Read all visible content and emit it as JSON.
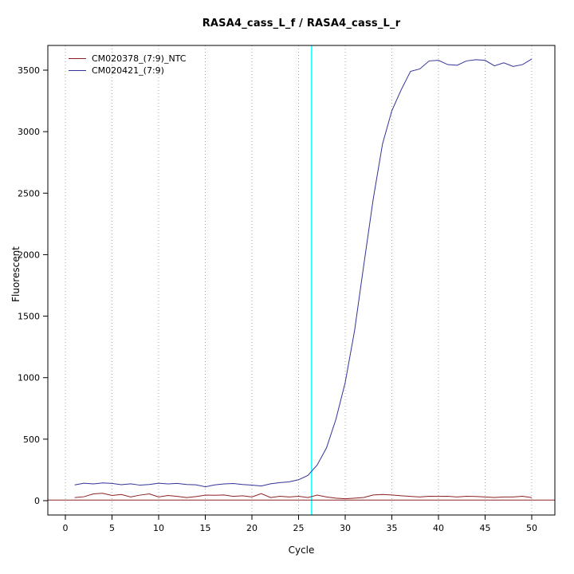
{
  "chart_data": {
    "type": "line",
    "title": "RASA4_cass_L_f / RASA4_cass_L_r",
    "xlabel": "Cycle",
    "ylabel": "Fluorescent",
    "xlim": [
      0,
      51
    ],
    "ylim": [
      0,
      3700
    ],
    "x_ticks": [
      0,
      5,
      10,
      15,
      20,
      25,
      30,
      35,
      40,
      45,
      50
    ],
    "y_ticks": [
      0,
      500,
      1000,
      1500,
      2000,
      2500,
      3000,
      3500
    ],
    "grid": "vertical-dotted",
    "legend_position": "top-left",
    "threshold_cycle": 26.4,
    "baseline_y": 5,
    "colors": {
      "grid": "#aaaaaa",
      "threshold": "#00ffff",
      "baseline": "#8b2222",
      "axis": "#000000"
    },
    "x": [
      1,
      2,
      3,
      4,
      5,
      6,
      7,
      8,
      9,
      10,
      11,
      12,
      13,
      14,
      15,
      16,
      17,
      18,
      19,
      20,
      21,
      22,
      23,
      24,
      25,
      26,
      27,
      28,
      29,
      30,
      31,
      32,
      33,
      34,
      35,
      36,
      37,
      38,
      39,
      40,
      41,
      42,
      43,
      44,
      45,
      46,
      47,
      48,
      49,
      50
    ],
    "series": [
      {
        "name": "CM020378_(7:9)_NTC",
        "color": "#8b2222",
        "values": [
          25,
          32,
          55,
          60,
          42,
          50,
          30,
          45,
          55,
          30,
          42,
          35,
          25,
          33,
          45,
          44,
          46,
          35,
          40,
          30,
          57,
          25,
          36,
          30,
          36,
          25,
          45,
          30,
          20,
          15,
          20,
          26,
          46,
          50,
          46,
          40,
          35,
          30,
          36,
          35,
          36,
          30,
          36,
          34,
          30,
          26,
          30,
          30,
          36,
          25
        ]
      },
      {
        "name": "CM020421_(7:9)",
        "color": "#333399",
        "values": [
          128,
          142,
          136,
          144,
          140,
          130,
          137,
          126,
          131,
          142,
          136,
          140,
          131,
          129,
          113,
          128,
          136,
          139,
          131,
          126,
          119,
          137,
          147,
          153,
          170,
          205,
          290,
          430,
          660,
          960,
          1380,
          1920,
          2450,
          2900,
          3170,
          3340,
          3490,
          3510,
          3575,
          3580,
          3545,
          3540,
          3575,
          3585,
          3580,
          3535,
          3560,
          3530,
          3545,
          3590
        ]
      }
    ]
  }
}
